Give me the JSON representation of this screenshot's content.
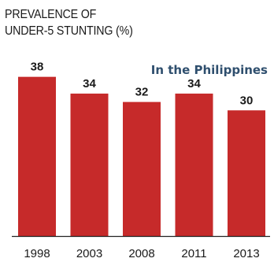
{
  "chart_data": {
    "type": "bar",
    "title_lines": [
      "PREVALENCE OF",
      "UNDER-5 STUNTING (%)"
    ],
    "subtitle": "In the Philippines",
    "categories": [
      "1998",
      "2003",
      "2008",
      "2011",
      "2013"
    ],
    "values": [
      38,
      34,
      32,
      34,
      30
    ],
    "ylim": [
      0,
      40
    ],
    "grid": false,
    "colors": {
      "bar": "#c62a2a",
      "axis": "#222222",
      "label": "#1a1a1a"
    }
  }
}
